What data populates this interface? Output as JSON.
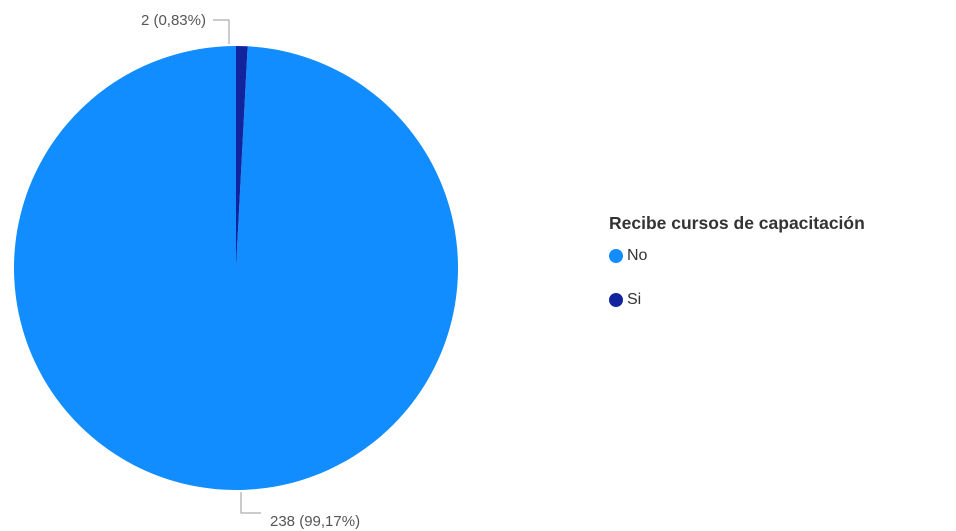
{
  "chart_data": {
    "type": "pie",
    "legend_title": "Recibe cursos de capacitación",
    "legend_position": "right",
    "slices": [
      {
        "name": "No",
        "value": 238,
        "percent": "99,17%",
        "label": "238 (99,17%)",
        "color": "#118DFF",
        "legend_label": "No"
      },
      {
        "name": "Si",
        "value": 2,
        "percent": "0,83%",
        "label": "2 (0,83%)",
        "color": "#12239E",
        "legend_label": "Si"
      }
    ]
  }
}
